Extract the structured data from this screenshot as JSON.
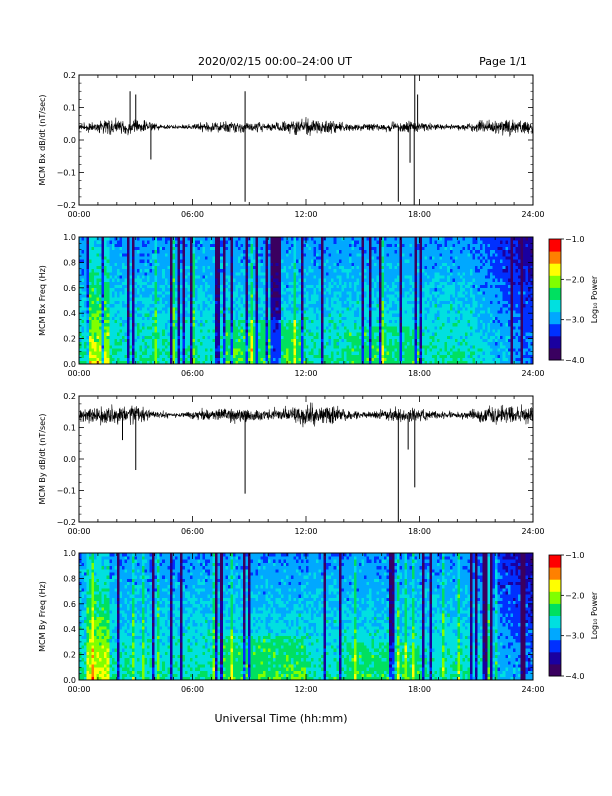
{
  "header": {
    "title": "2020/02/15  00:00–24:00 UT",
    "page": "Page 1/1"
  },
  "colors": {
    "trace": "#000000",
    "colormap": [
      "#3a0060",
      "#1a00a0",
      "#0030ff",
      "#00a8ff",
      "#00e0e0",
      "#00e060",
      "#80ff00",
      "#ffff00",
      "#ff8000",
      "#ff0000"
    ]
  },
  "chart_data": [
    {
      "type": "line",
      "ylabel": "MCM Bx dB/dt (nT/sec)",
      "xlim": [
        0,
        24
      ],
      "ylim": [
        -0.2,
        0.2
      ],
      "yticks": [
        "−0.2",
        "−0.1",
        "0.0",
        "0.1",
        "0.2"
      ],
      "ytick_values": [
        -0.2,
        -0.1,
        0.0,
        0.1,
        0.2
      ],
      "xticks": [
        "00:00",
        "06:00",
        "12:00",
        "18:00",
        "24:00"
      ],
      "baseline": 0.04,
      "noise": 0.03,
      "spikes": [
        {
          "t": 8.78,
          "v": -0.19
        },
        {
          "t": 8.78,
          "v": 0.15
        },
        {
          "t": 16.88,
          "v": -0.19
        },
        {
          "t": 17.72,
          "v": -0.2
        },
        {
          "t": 17.75,
          "v": 0.2
        },
        {
          "t": 17.5,
          "v": -0.07
        },
        {
          "t": 2.7,
          "v": 0.15
        },
        {
          "t": 3.0,
          "v": 0.14
        },
        {
          "t": 3.8,
          "v": -0.06
        },
        {
          "t": 17.9,
          "v": 0.14
        }
      ]
    },
    {
      "type": "heatmap",
      "ylabel": "MCM Bx Freq (Hz)",
      "xlim": [
        0,
        24
      ],
      "ylim": [
        0,
        1.0
      ],
      "yticks": [
        "0.0",
        "0.2",
        "0.4",
        "0.6",
        "0.8",
        "1.0"
      ],
      "ytick_values": [
        0,
        0.2,
        0.4,
        0.6,
        0.8,
        1.0
      ],
      "xticks": [
        "00:00",
        "06:00",
        "12:00",
        "18:00",
        "24:00"
      ],
      "colorbar": {
        "label": "Log₁₀ Power",
        "range": [
          -4.0,
          -1.0
        ],
        "ticks": [
          "−4.0",
          "−3.0",
          "−2.0",
          "−1.0"
        ],
        "tick_values": [
          -4.0,
          -3.0,
          -2.0,
          -1.0
        ]
      }
    },
    {
      "type": "line",
      "ylabel": "MCM By dB/dt (nT/sec)",
      "xlim": [
        0,
        24
      ],
      "ylim": [
        -0.2,
        0.2
      ],
      "yticks": [
        "−0.2",
        "−0.1",
        "0.0",
        "0.1",
        "0.2"
      ],
      "ytick_values": [
        -0.2,
        -0.1,
        0.0,
        0.1,
        0.2
      ],
      "xticks": [
        "00:00",
        "06:00",
        "12:00",
        "18:00",
        "24:00"
      ],
      "baseline": 0.14,
      "noise": 0.04,
      "spikes": [
        {
          "t": 3.0,
          "v": -0.035
        },
        {
          "t": 8.78,
          "v": -0.11
        },
        {
          "t": 16.88,
          "v": -0.2
        },
        {
          "t": 17.75,
          "v": -0.09
        },
        {
          "t": 17.4,
          "v": 0.03
        },
        {
          "t": 2.3,
          "v": 0.06
        }
      ]
    },
    {
      "type": "heatmap",
      "ylabel": "MCM By Freq (Hz)",
      "xlim": [
        0,
        24
      ],
      "ylim": [
        0,
        1.0
      ],
      "yticks": [
        "0.0",
        "0.2",
        "0.4",
        "0.6",
        "0.8",
        "1.0"
      ],
      "ytick_values": [
        0,
        0.2,
        0.4,
        0.6,
        0.8,
        1.0
      ],
      "xticks": [
        "00:00",
        "06:00",
        "12:00",
        "18:00",
        "24:00"
      ],
      "xlabel": "Universal Time (hh:mm)",
      "colorbar": {
        "label": "Log₁₀ Power",
        "range": [
          -4.0,
          -1.0
        ],
        "ticks": [
          "−4.0",
          "−3.0",
          "−2.0",
          "−1.0"
        ],
        "tick_values": [
          -4.0,
          -3.0,
          -2.0,
          -1.0
        ]
      }
    }
  ]
}
